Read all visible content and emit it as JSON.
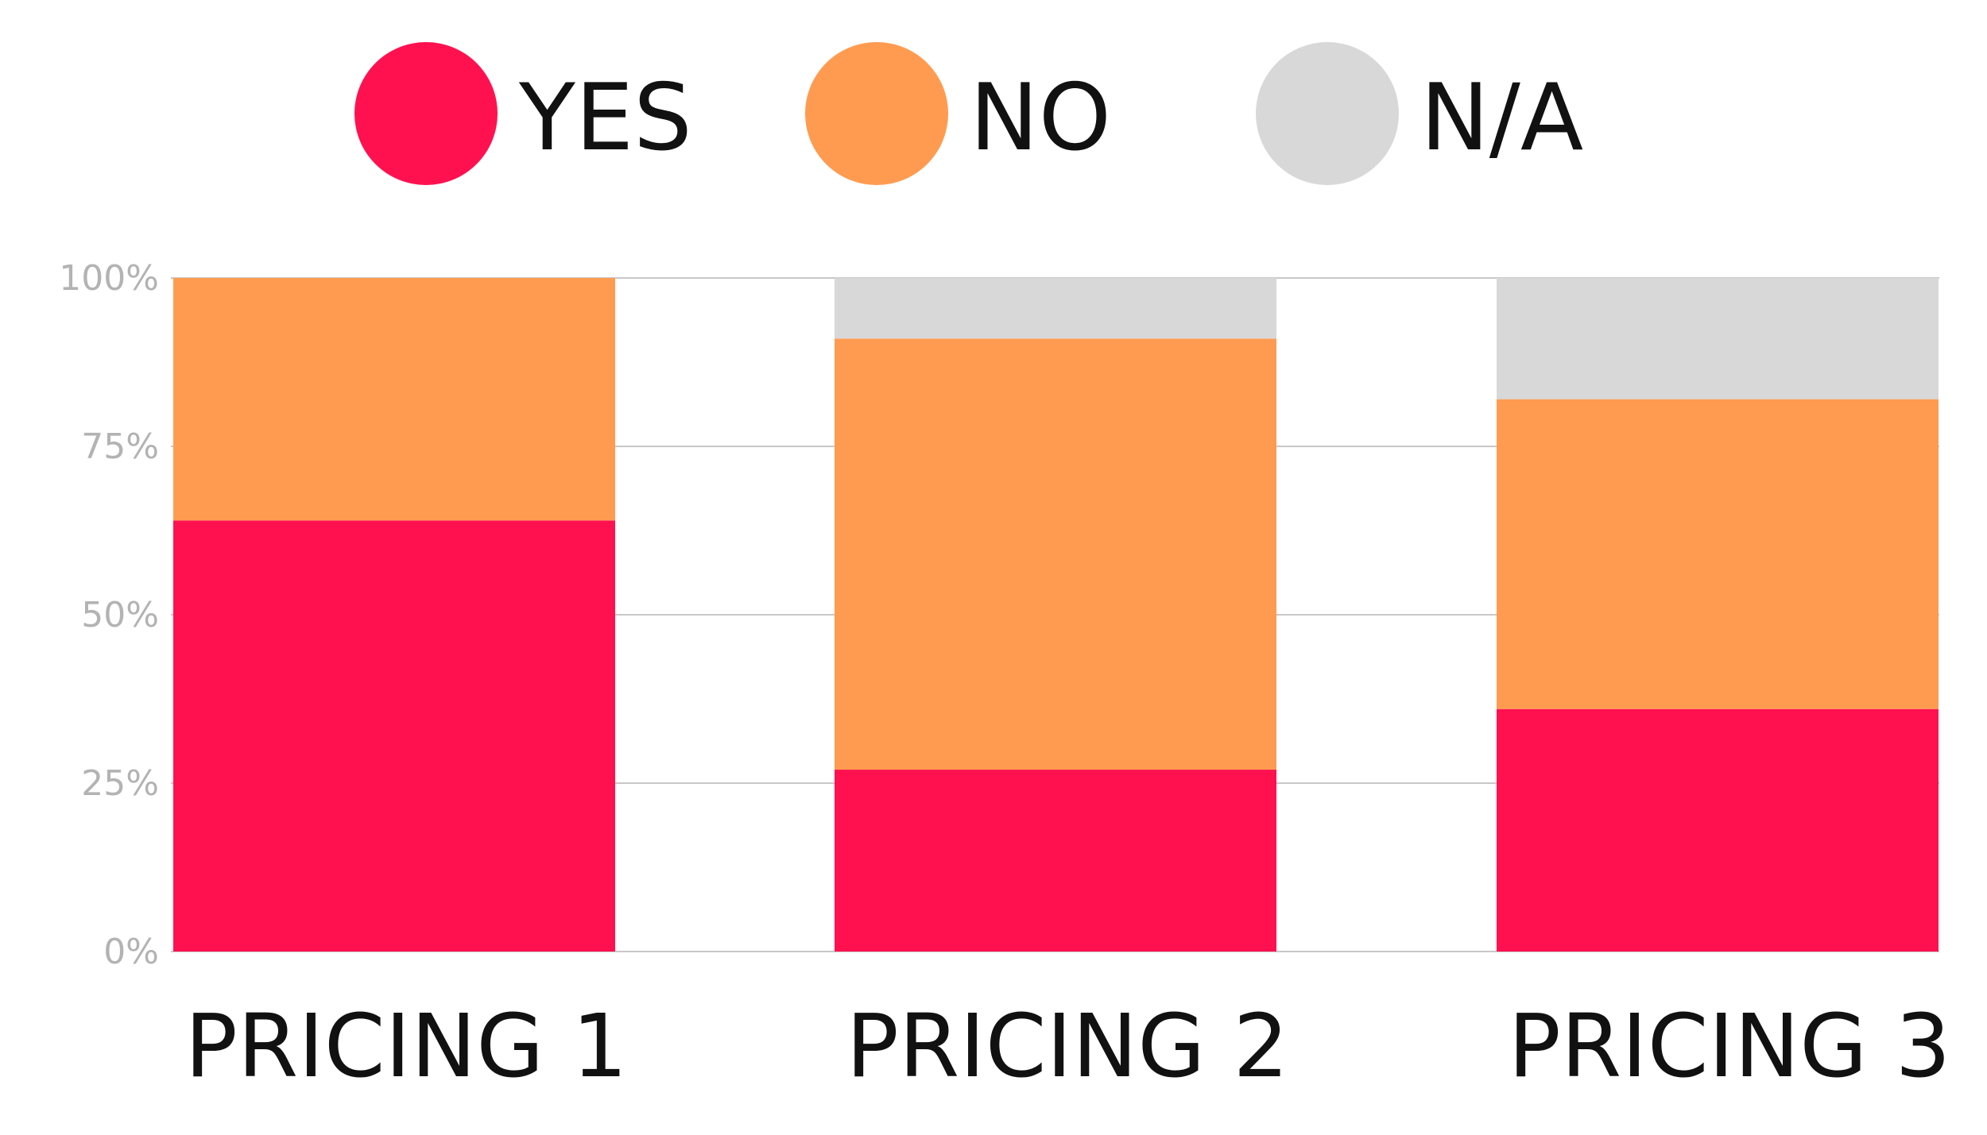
{
  "chart_data": {
    "type": "bar",
    "stacked": true,
    "percent": true,
    "categories": [
      "PRICING 1",
      "PRICING 2",
      "PRICING 3"
    ],
    "series": [
      {
        "name": "YES",
        "color": "#ff1150",
        "values": [
          64,
          27,
          36
        ]
      },
      {
        "name": "NO",
        "color": "#ff9b50",
        "values": [
          36,
          64,
          46
        ]
      },
      {
        "name": "N/A",
        "color": "#d8d8d8",
        "values": [
          0,
          9,
          18
        ]
      }
    ],
    "ylim": [
      0,
      100
    ],
    "yticks": [
      {
        "value": 0,
        "label": "0%"
      },
      {
        "value": 25,
        "label": "25%"
      },
      {
        "value": 50,
        "label": "50%"
      },
      {
        "value": 75,
        "label": "75%"
      },
      {
        "value": 100,
        "label": "100%"
      }
    ],
    "grid": true,
    "legend_position": "top"
  }
}
